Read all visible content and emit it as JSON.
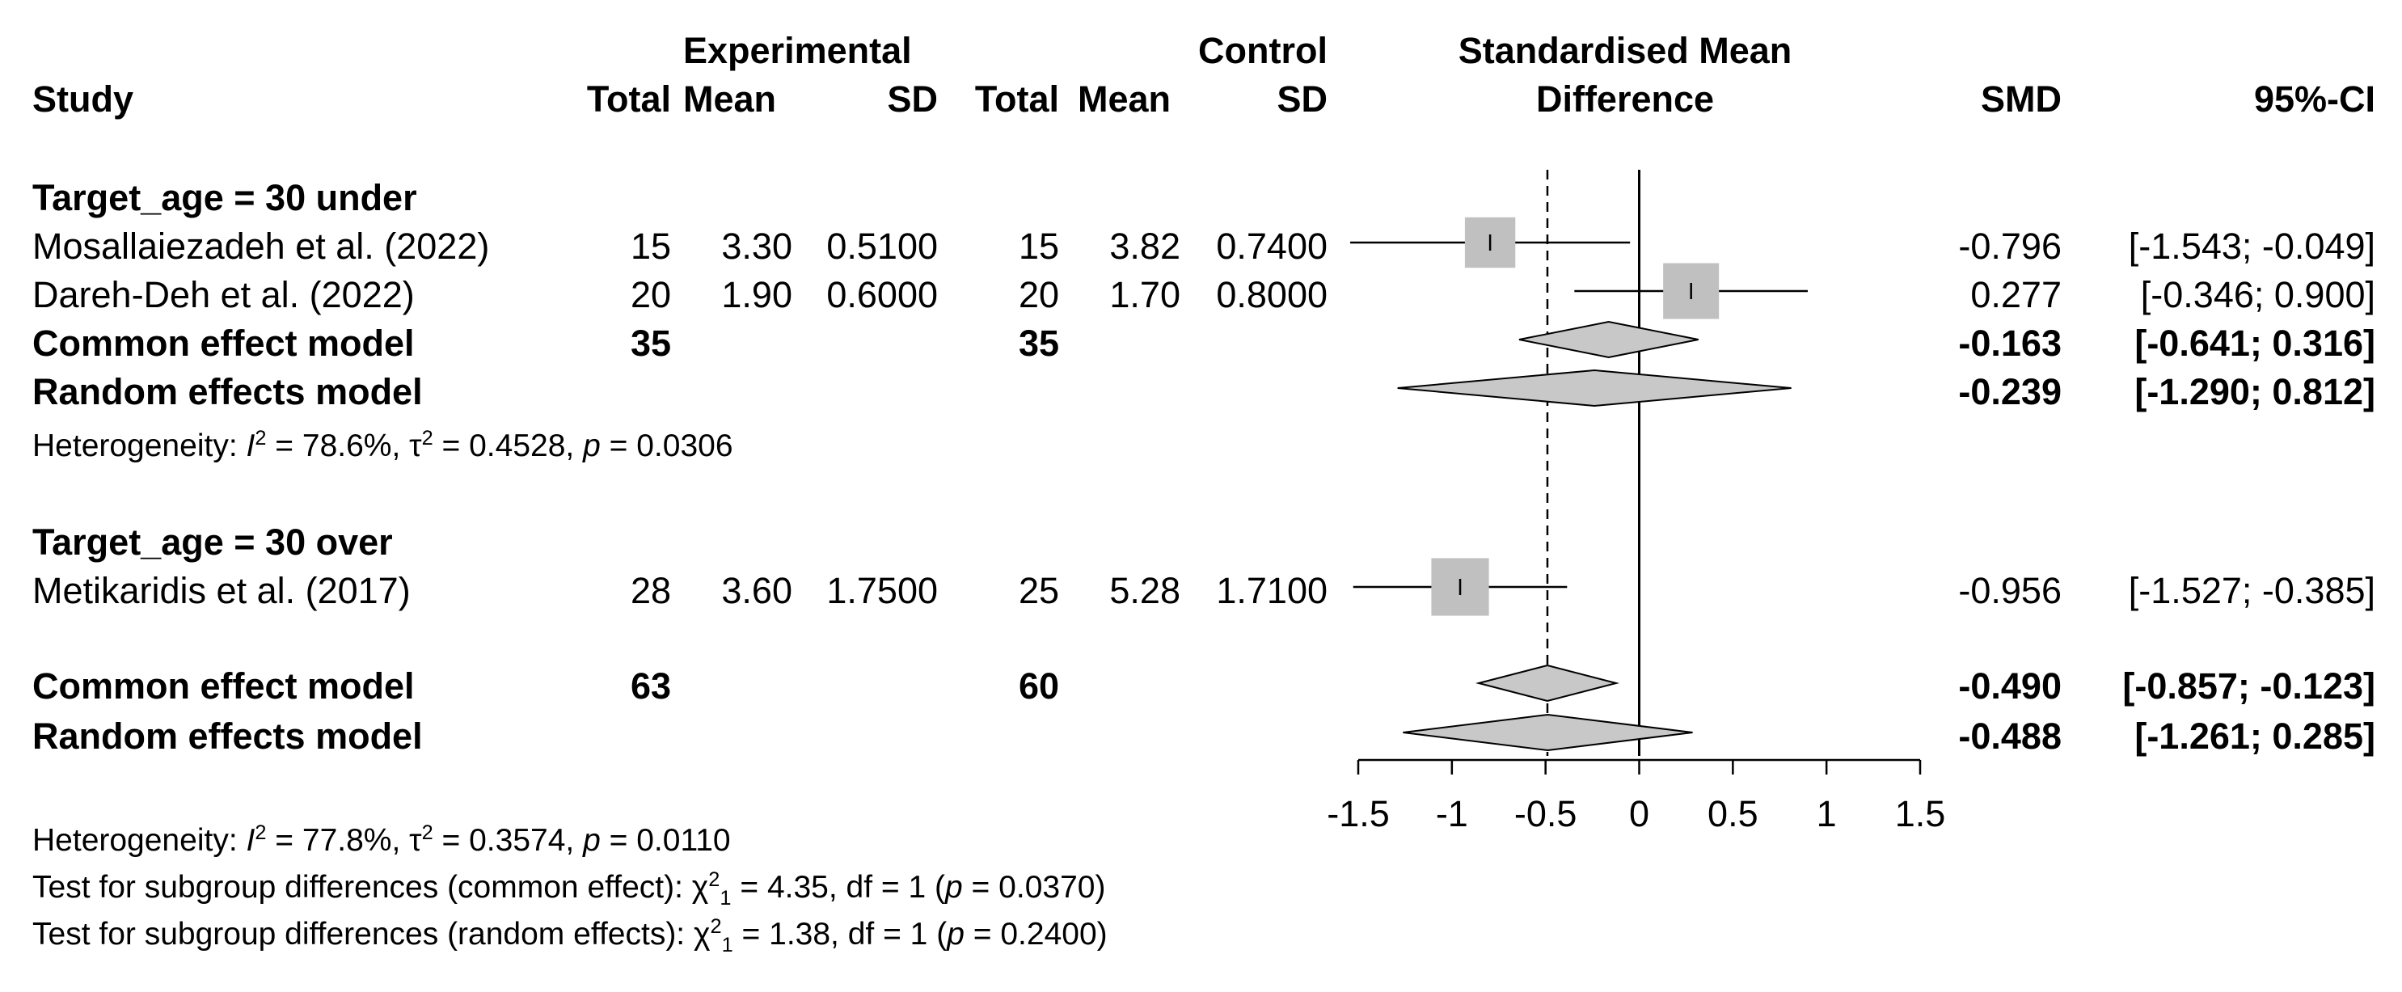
{
  "chart_data": {
    "type": "forest",
    "title": "",
    "xlabel": "Standardised Mean Difference",
    "xlim": [
      -1.5,
      1.5
    ],
    "xticks": [
      "-1.5",
      "-1",
      "-0.5",
      "0",
      "0.5",
      "1",
      "1.5"
    ],
    "null_line": 0,
    "overall_line": -0.49,
    "header": {
      "experimental": "Experimental",
      "control": "Control",
      "study": "Study",
      "total": "Total",
      "mean": "Mean",
      "sd": "SD",
      "smd_line1": "Standardised Mean",
      "smd_line2": "Difference",
      "smd": "SMD",
      "ci": "95%-CI"
    },
    "subgroups": [
      {
        "label": "Target_age = 30 under",
        "studies": [
          {
            "name": "Mosallaiezadeh et al. (2022)",
            "e_total": "15",
            "e_mean": "3.30",
            "e_sd": "0.5100",
            "c_total": "15",
            "c_mean": "3.82",
            "c_sd": "0.7400",
            "smd": -0.796,
            "lo": -1.543,
            "hi": -0.049,
            "smd_text": "-0.796",
            "ci_text": "[-1.543; -0.049]",
            "weight": 0.6
          },
          {
            "name": "Dareh-Deh et al. (2022)",
            "e_total": "20",
            "e_mean": "1.90",
            "e_sd": "0.6000",
            "c_total": "20",
            "c_mean": "1.70",
            "c_sd": "0.8000",
            "smd": 0.277,
            "lo": -0.346,
            "hi": 0.9,
            "smd_text": "0.277",
            "ci_text": "[-0.346; 0.900]",
            "weight": 0.75
          }
        ],
        "common": {
          "label": "Common effect model",
          "e_total": "35",
          "c_total": "35",
          "smd": -0.163,
          "lo": -0.641,
          "hi": 0.316,
          "smd_text": "-0.163",
          "ci_text": "[-0.641; 0.316]"
        },
        "random": {
          "label": "Random effects model",
          "smd": -0.239,
          "lo": -1.29,
          "hi": 0.812,
          "smd_text": "-0.239",
          "ci_text": "[-1.290; 0.812]"
        },
        "heterogeneity": {
          "prefix": "Heterogeneity: ",
          "i2_label": "I",
          "i2": " = 78.6%, ",
          "tau_label": "τ",
          "tau2": " = 0.4528, ",
          "p_label": "p",
          "p": " = 0.0306"
        }
      },
      {
        "label": "Target_age = 30 over",
        "studies": [
          {
            "name": "Metikaridis et al. (2017)",
            "e_total": "28",
            "e_mean": "3.60",
            "e_sd": "1.7500",
            "c_total": "25",
            "c_mean": "5.28",
            "c_sd": "1.7100",
            "smd": -0.956,
            "lo": -1.527,
            "hi": -0.385,
            "smd_text": "-0.956",
            "ci_text": "[-1.527; -0.385]",
            "weight": 0.8
          }
        ]
      }
    ],
    "overall": {
      "common": {
        "label": "Common effect model",
        "e_total": "63",
        "c_total": "60",
        "smd": -0.49,
        "lo": -0.857,
        "hi": -0.123,
        "smd_text": "-0.490",
        "ci_text": "[-0.857; -0.123]"
      },
      "random": {
        "label": "Random effects model",
        "smd": -0.488,
        "lo": -1.261,
        "hi": 0.285,
        "smd_text": "-0.488",
        "ci_text": "[-1.261; 0.285]"
      }
    },
    "footer": {
      "het_prefix": "Heterogeneity: ",
      "het_i2_label": "I",
      "het_i2": " = 77.8%, ",
      "het_tau_label": "τ",
      "het_tau2": " = 0.3574, ",
      "het_p_label": "p",
      "het_p": " = 0.0110",
      "test_common_prefix": "Test for subgroup differences (common effect): ",
      "chi_label": "χ",
      "test_common_value": " = 4.35, df = 1 (",
      "test_common_p": " = 0.0370)",
      "test_random_prefix": "Test for subgroup differences (random effects): ",
      "test_random_value": " = 1.38, df = 1 (",
      "test_random_p": " = 0.2400)",
      "sup2": "2",
      "sub1": "1",
      "p_label": "p"
    },
    "colors": {
      "square": "#c0c0c0",
      "diamond": "#c8c8c8",
      "line": "#000000"
    }
  }
}
